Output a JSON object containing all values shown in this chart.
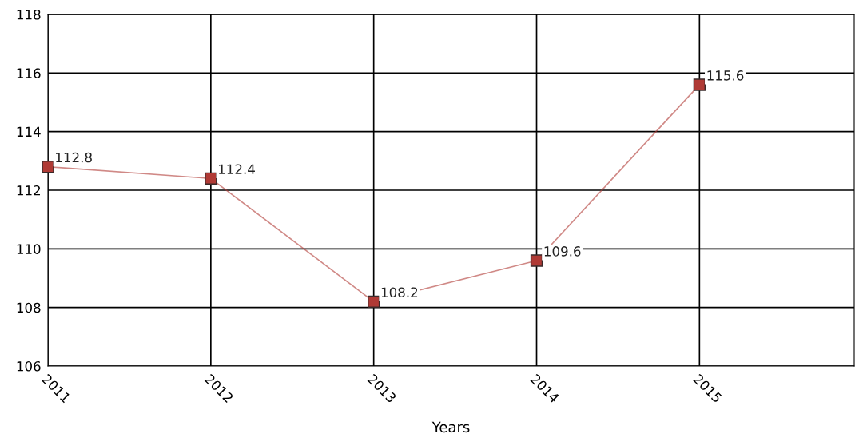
{
  "chart_data": {
    "type": "line",
    "xlabel": "Years",
    "categories": [
      "2011",
      "2012",
      "2013",
      "2014",
      "2015"
    ],
    "series": [
      {
        "color": "#b03a35",
        "values": [
          112.8,
          112.4,
          108.2,
          109.6,
          115.6
        ]
      }
    ],
    "ylim": [
      106,
      118
    ],
    "yticks": [
      106,
      108,
      110,
      112,
      114,
      116,
      118
    ],
    "grid": true,
    "legend": false,
    "marker": "square",
    "line_style": "solid",
    "data_labels": true
  }
}
